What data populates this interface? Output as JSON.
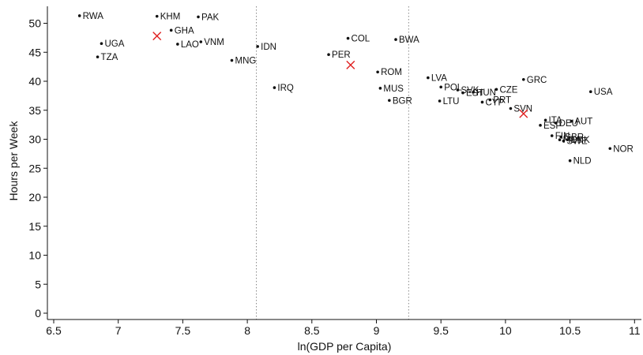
{
  "chart_data": {
    "type": "scatter",
    "xlabel": "ln(GDP per Capita)",
    "ylabel": "Hours per Week",
    "xlim": [
      6.5,
      11
    ],
    "ylim": [
      0,
      52
    ],
    "xticks": [
      "6.5",
      "7",
      "7.5",
      "8",
      "8.5",
      "9",
      "9.5",
      "10",
      "10.5",
      "11"
    ],
    "yticks": [
      "0",
      "5",
      "10",
      "15",
      "20",
      "25",
      "30",
      "35",
      "40",
      "45",
      "50"
    ],
    "grid": false,
    "vlines": [
      8.07,
      9.25
    ],
    "colors": {
      "points": "#111111",
      "markers": "#e02020",
      "vlines": "#888888"
    },
    "points": [
      {
        "label": "RWA",
        "x": 6.7,
        "y": 51.3
      },
      {
        "label": "KHM",
        "x": 7.3,
        "y": 51.2
      },
      {
        "label": "PAK",
        "x": 7.62,
        "y": 51.1
      },
      {
        "label": "GHA",
        "x": 7.41,
        "y": 48.8
      },
      {
        "label": "UGA",
        "x": 6.87,
        "y": 46.5
      },
      {
        "label": "LAO",
        "x": 7.46,
        "y": 46.4
      },
      {
        "label": "VNM",
        "x": 7.64,
        "y": 46.8
      },
      {
        "label": "TZA",
        "x": 6.84,
        "y": 44.2
      },
      {
        "label": "IDN",
        "x": 8.08,
        "y": 46.0
      },
      {
        "label": "MNG",
        "x": 7.88,
        "y": 43.6
      },
      {
        "label": "IRQ",
        "x": 8.21,
        "y": 38.9
      },
      {
        "label": "COL",
        "x": 8.78,
        "y": 47.4
      },
      {
        "label": "BWA",
        "x": 9.15,
        "y": 47.2
      },
      {
        "label": "PER",
        "x": 8.63,
        "y": 44.6
      },
      {
        "label": "ROM",
        "x": 9.01,
        "y": 41.6
      },
      {
        "label": "MUS",
        "x": 9.03,
        "y": 38.8
      },
      {
        "label": "BGR",
        "x": 9.1,
        "y": 36.7
      },
      {
        "label": "LVA",
        "x": 9.4,
        "y": 40.6
      },
      {
        "label": "POL",
        "x": 9.5,
        "y": 39.0
      },
      {
        "label": "SVK",
        "x": 9.63,
        "y": 38.5
      },
      {
        "label": "EST",
        "x": 9.67,
        "y": 38.0
      },
      {
        "label": "HUN",
        "x": 9.75,
        "y": 38.1
      },
      {
        "label": "LTU",
        "x": 9.49,
        "y": 36.6
      },
      {
        "label": "CZE",
        "x": 9.93,
        "y": 38.6
      },
      {
        "label": "PRT",
        "x": 9.88,
        "y": 36.8
      },
      {
        "label": "CYP",
        "x": 9.82,
        "y": 36.4
      },
      {
        "label": "GRC",
        "x": 10.14,
        "y": 40.3
      },
      {
        "label": "SVN",
        "x": 10.04,
        "y": 35.3
      },
      {
        "label": "USA",
        "x": 10.66,
        "y": 38.2
      },
      {
        "label": "ITA",
        "x": 10.31,
        "y": 33.3
      },
      {
        "label": "DEU",
        "x": 10.39,
        "y": 32.8
      },
      {
        "label": "ESP",
        "x": 10.27,
        "y": 32.4
      },
      {
        "label": "AUT",
        "x": 10.51,
        "y": 33.1
      },
      {
        "label": "FIN",
        "x": 10.36,
        "y": 30.6
      },
      {
        "label": "GBR",
        "x": 10.43,
        "y": 30.4
      },
      {
        "label": "FRA",
        "x": 10.42,
        "y": 29.9
      },
      {
        "label": "SWE",
        "x": 10.45,
        "y": 29.7
      },
      {
        "label": "DNK",
        "x": 10.48,
        "y": 29.9
      },
      {
        "label": "NOR",
        "x": 10.81,
        "y": 28.4
      },
      {
        "label": "NLD",
        "x": 10.5,
        "y": 26.3
      }
    ],
    "markers": [
      {
        "x": 7.3,
        "y": 47.8
      },
      {
        "x": 8.8,
        "y": 42.8
      },
      {
        "x": 10.14,
        "y": 34.4
      }
    ]
  }
}
